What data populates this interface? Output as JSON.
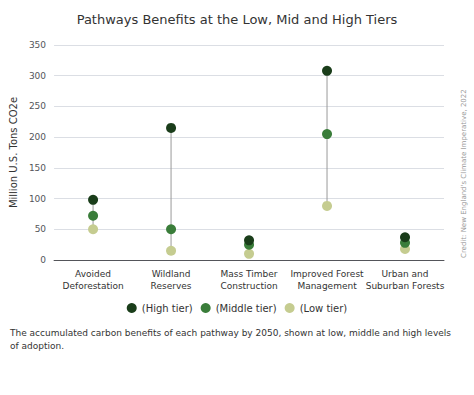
{
  "chart_data": {
    "type": "scatter",
    "title": "Pathways Benefits at the Low, Mid and High Tiers",
    "ylabel": "Million U.S. Tons CO2e",
    "categories": [
      "Avoided\nDeforestation",
      "Wildland\nReserves",
      "Mass Timber\nConstruction",
      "Improved Forest\nManagement",
      "Urban and\nSuburban Forests"
    ],
    "series": [
      {
        "name": "(High tier)",
        "color": "#1a3d1a",
        "values": [
          98,
          215,
          32,
          308,
          37
        ]
      },
      {
        "name": "(Middle tier)",
        "color": "#3a7d3a",
        "values": [
          72,
          50,
          25,
          205,
          28
        ]
      },
      {
        "name": "(Low tier)",
        "color": "#c5cc90",
        "values": [
          50,
          15,
          10,
          88,
          18
        ]
      }
    ],
    "ylim": [
      0,
      350
    ],
    "yticks": [
      0,
      50,
      100,
      150,
      200,
      250,
      300,
      350
    ],
    "grid": true,
    "legend": "bottom",
    "marker": "circle",
    "annotations": [
      "The accumulated carbon benefits of each pathway by 2050, shown at low, middle and high levels\nof adoption.",
      "Credit: New England's Climate Imperative, 2022"
    ]
  }
}
